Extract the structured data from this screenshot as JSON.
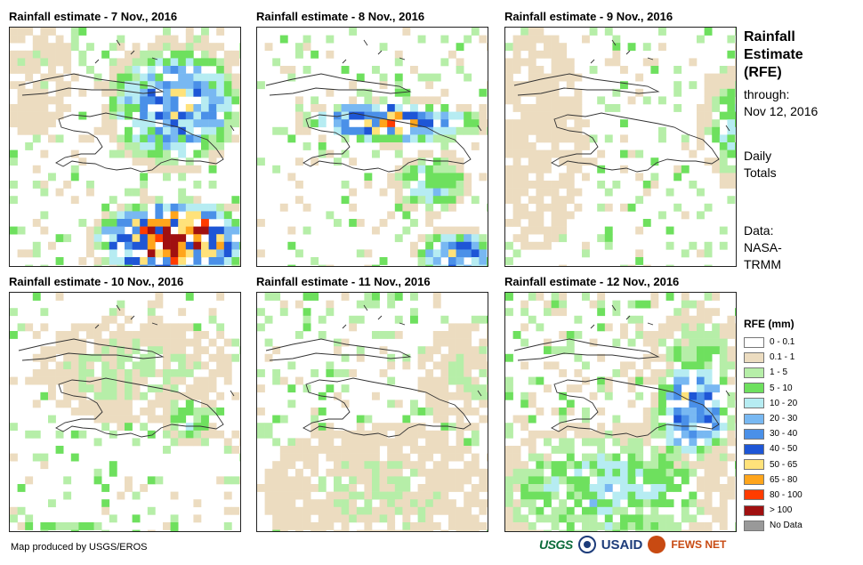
{
  "panels": [
    {
      "title": "Rainfall estimate - 7 Nov., 2016"
    },
    {
      "title": "Rainfall estimate - 8 Nov., 2016"
    },
    {
      "title": "Rainfall estimate - 9 Nov., 2016"
    },
    {
      "title": "Rainfall estimate - 10 Nov., 2016"
    },
    {
      "title": "Rainfall estimate - 11 Nov., 2016"
    },
    {
      "title": "Rainfall estimate - 12 Nov., 2016"
    }
  ],
  "sidebar": {
    "title_lines": [
      "Rainfall",
      "Estimate",
      "(RFE)"
    ],
    "through_label": "through:",
    "through_date": "Nov 12, 2016",
    "totals_lines": [
      "Daily",
      "Totals"
    ],
    "data_lines": [
      "Data:",
      "NASA-",
      "TRMM"
    ]
  },
  "legend": {
    "title": "RFE (mm)",
    "items": [
      {
        "label": "0 - 0.1",
        "color": "#ffffff"
      },
      {
        "label": "0.1 - 1",
        "color": "#ecdcc0"
      },
      {
        "label": "1 - 5",
        "color": "#b6eea8"
      },
      {
        "label": "5 - 10",
        "color": "#6ee05e"
      },
      {
        "label": "10 - 20",
        "color": "#b6ecf2"
      },
      {
        "label": "20 - 30",
        "color": "#78b8f2"
      },
      {
        "label": "30 - 40",
        "color": "#4a90e8"
      },
      {
        "label": "40 - 50",
        "color": "#1e56d6"
      },
      {
        "label": "50 - 65",
        "color": "#ffe27a"
      },
      {
        "label": "65 - 80",
        "color": "#ffa51c"
      },
      {
        "label": "80 - 100",
        "color": "#ff3c00"
      },
      {
        "label": "> 100",
        "color": "#a01010"
      },
      {
        "label": "No Data",
        "color": "#999999"
      }
    ]
  },
  "credit": "Map produced by USGS/EROS",
  "logos": {
    "usgs": "USGS",
    "usaid": "USAID",
    "fews": "FEWS NET"
  }
}
